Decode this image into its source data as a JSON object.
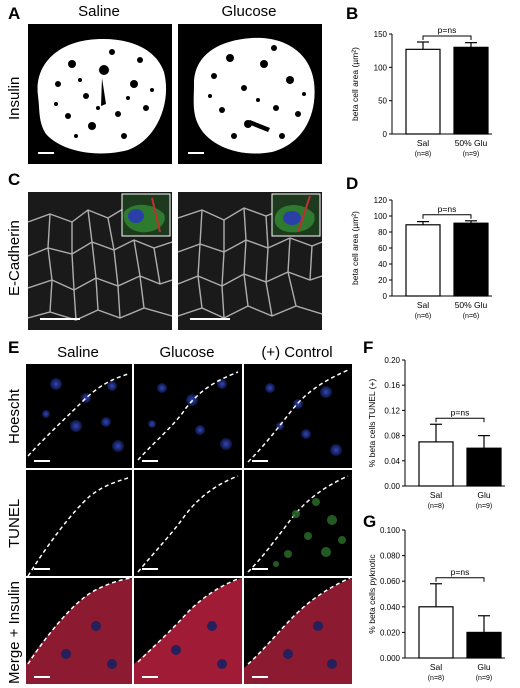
{
  "panel_letters": {
    "a": "A",
    "b": "B",
    "c": "C",
    "d": "D",
    "e": "E",
    "f": "F",
    "g": "G"
  },
  "panelA": {
    "col1": "Saline",
    "col2": "Glucose",
    "row": "Insulin"
  },
  "panelC": {
    "row": "E-Cadherin"
  },
  "panelE": {
    "col1": "Saline",
    "col2": "Glucose",
    "col3": "(+) Control",
    "row1": "Hoescht",
    "row2": "TUNEL",
    "row3": "Merge + Insulin"
  },
  "chart_data": [
    {
      "id": "B",
      "type": "bar",
      "ylabel": "beta cell area (µm²)",
      "ylim": [
        0,
        150
      ],
      "yticks": [
        "0",
        "50",
        "100",
        "150"
      ],
      "categories": [
        "Sal",
        "50% Glu"
      ],
      "ns": [
        "(n=8)",
        "(n=9)"
      ],
      "values": [
        127,
        130
      ],
      "errors": [
        11,
        7
      ],
      "fills": [
        "#ffffff",
        "#000000"
      ],
      "annotation": "p=ns"
    },
    {
      "id": "D",
      "type": "bar",
      "ylabel": "beta cell area (µm²)",
      "ylim": [
        0,
        120
      ],
      "yticks": [
        "0",
        "20",
        "40",
        "60",
        "80",
        "100",
        "120"
      ],
      "categories": [
        "Sal",
        "50% Glu"
      ],
      "ns": [
        "(n=6)",
        "(n=6)"
      ],
      "values": [
        89,
        91
      ],
      "errors": [
        4,
        3
      ],
      "fills": [
        "#ffffff",
        "#000000"
      ],
      "annotation": "p=ns"
    },
    {
      "id": "F",
      "type": "bar",
      "ylabel": "% beta cells TUNEL (+)",
      "ylim": [
        0,
        0.2
      ],
      "yticks": [
        "0.00",
        "0.04",
        "0.08",
        "0.12",
        "0.16",
        "0.20"
      ],
      "categories": [
        "Sal",
        "Glu"
      ],
      "ns": [
        "(n=8)",
        "(n=9)"
      ],
      "values": [
        0.07,
        0.06
      ],
      "errors": [
        0.028,
        0.02
      ],
      "fills": [
        "#ffffff",
        "#000000"
      ],
      "annotation": "p=ns"
    },
    {
      "id": "G",
      "type": "bar",
      "ylabel": "% beta cells pyknotic",
      "ylim": [
        0,
        0.1
      ],
      "yticks": [
        "0.000",
        "0.020",
        "0.040",
        "0.060",
        "0.080",
        "0.100"
      ],
      "categories": [
        "Sal",
        "Glu"
      ],
      "ns": [
        "(n=8)",
        "(n=9)"
      ],
      "values": [
        0.04,
        0.02
      ],
      "errors": [
        0.018,
        0.013
      ],
      "fills": [
        "#ffffff",
        "#000000"
      ],
      "annotation": "p=ns"
    }
  ]
}
